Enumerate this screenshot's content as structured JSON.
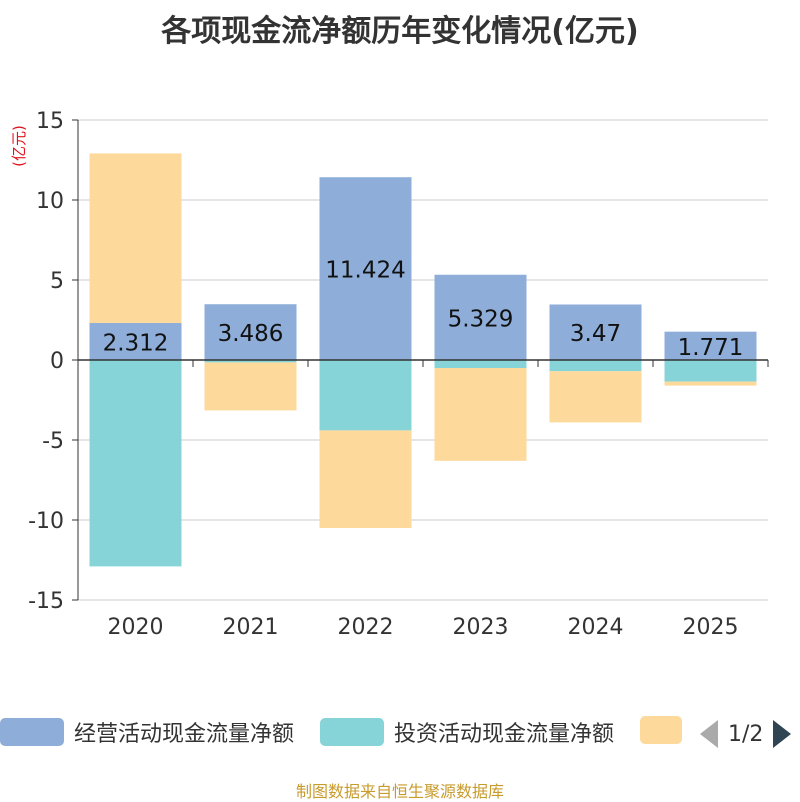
{
  "chart_data": {
    "type": "bar",
    "stacked": true,
    "title": "各项现金流净额历年变化情况(亿元)",
    "ylabel": "(亿元)",
    "xlabel": "",
    "ylim": [
      -15,
      15
    ],
    "yticks": [
      15,
      10,
      5,
      0,
      -5,
      -10,
      -15
    ],
    "categories": [
      "2020",
      "2021",
      "2022",
      "2023",
      "2024",
      "2025"
    ],
    "series": [
      {
        "name": "经营活动现金流量净额",
        "color": "#8eaed9",
        "values": [
          2.312,
          3.486,
          11.424,
          5.329,
          3.47,
          1.771
        ],
        "labels": [
          "2.312",
          "3.486",
          "11.424",
          "5.329",
          "3.47",
          "1.771"
        ]
      },
      {
        "name": "投资活动现金流量净额",
        "color": "#87d4d8",
        "values": [
          -12.9,
          -0.15,
          -4.4,
          -0.5,
          -0.7,
          -1.35
        ]
      },
      {
        "name": "",
        "color": "#fdd99b",
        "values": [
          10.6,
          -3.0,
          -6.1,
          -5.8,
          -3.2,
          -0.25
        ]
      }
    ]
  },
  "legend": {
    "items": [
      {
        "label": "经营活动现金流量净额",
        "color": "#8eaed9"
      },
      {
        "label": "投资活动现金流量净额",
        "color": "#87d4d8"
      },
      {
        "label": "",
        "color": "#fdd99b"
      }
    ],
    "page": "1/2"
  },
  "source": "制图数据来自恒生聚源数据库"
}
